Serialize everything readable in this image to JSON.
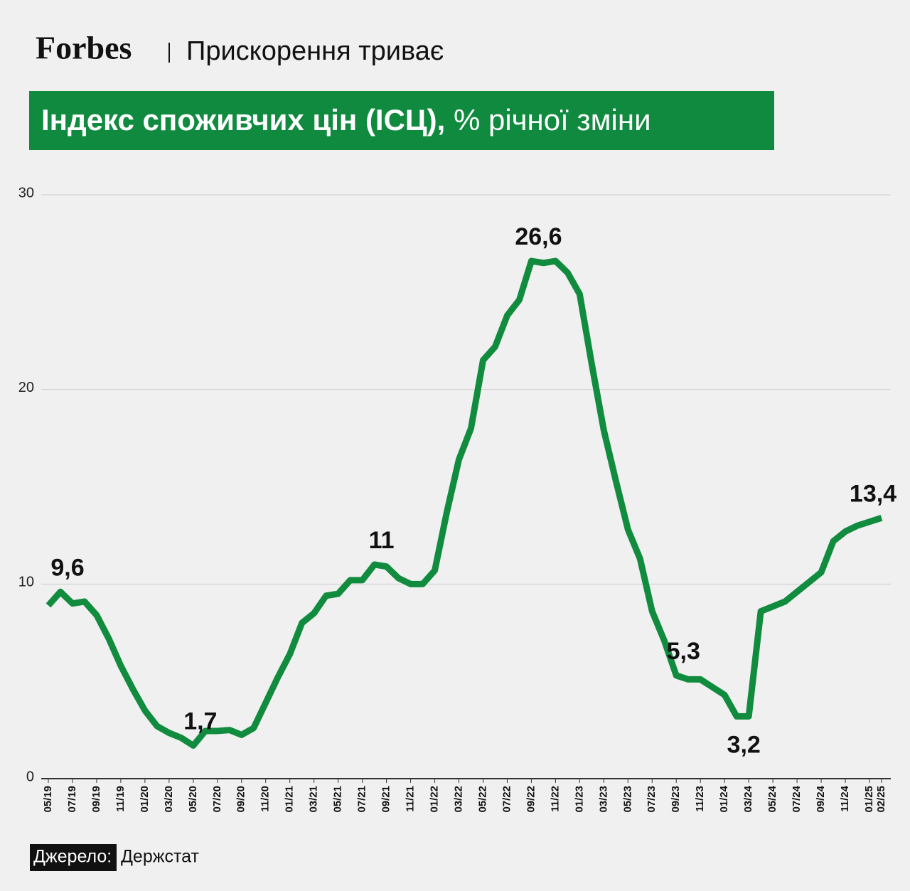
{
  "brand": "Forbes",
  "headline": "Прискорення триває",
  "source_label": "Джерело:",
  "source": "Держстат",
  "chart_data": {
    "type": "line",
    "title": "Індекс споживчих цін (ІСЦ),",
    "subtitle": "% річної зміни",
    "categories": [
      "05/19",
      null,
      "07/19",
      null,
      "09/19",
      null,
      "11/19",
      null,
      "01/20",
      null,
      "03/20",
      null,
      "05/20",
      null,
      "07/20",
      null,
      "09/20",
      null,
      "11/20",
      null,
      "01/21",
      null,
      "03/21",
      null,
      "05/21",
      null,
      "07/21",
      null,
      "09/21",
      null,
      "11/21",
      null,
      "01/22",
      null,
      "03/22",
      null,
      "05/22",
      null,
      "07/22",
      null,
      "09/22",
      null,
      "11/22",
      null,
      "01/23",
      null,
      "03/23",
      null,
      "05/23",
      null,
      "07/23",
      null,
      "09/23",
      null,
      "11/23",
      null,
      "01/24",
      null,
      "03/24",
      null,
      "05/24",
      null,
      "07/24",
      null,
      "09/24",
      null,
      "11/24",
      null,
      "01/25",
      "02/25"
    ],
    "series": [
      {
        "name": "ІСЦ",
        "color": "#118c3f",
        "values": [
          8.9,
          9.6,
          9.0,
          9.1,
          8.4,
          7.2,
          5.8,
          4.6,
          3.5,
          2.7,
          2.35,
          2.1,
          1.7,
          2.45,
          2.45,
          2.5,
          2.25,
          2.6,
          3.9,
          5.2,
          6.4,
          8.0,
          8.5,
          9.4,
          9.5,
          10.2,
          10.2,
          11.0,
          10.9,
          10.3,
          10.0,
          10.0,
          10.7,
          13.7,
          16.4,
          18.0,
          21.5,
          22.2,
          23.8,
          24.6,
          26.6,
          26.5,
          26.6,
          26.0,
          24.9,
          21.3,
          17.9,
          15.3,
          12.8,
          11.3,
          8.6,
          7.1,
          5.3,
          5.1,
          5.1,
          4.7,
          4.3,
          3.2,
          3.2,
          8.6,
          8.85,
          9.1,
          9.6,
          10.1,
          10.6,
          12.2,
          12.7,
          13.0,
          13.2,
          13.4
        ],
        "value_labels": [
          null,
          "9,6",
          null,
          null,
          null,
          null,
          null,
          null,
          null,
          null,
          null,
          null,
          "1,7",
          null,
          null,
          null,
          null,
          null,
          null,
          null,
          null,
          null,
          null,
          null,
          null,
          null,
          null,
          "11",
          null,
          null,
          null,
          null,
          null,
          null,
          null,
          null,
          null,
          null,
          null,
          null,
          "26,6",
          null,
          null,
          null,
          null,
          null,
          null,
          null,
          null,
          null,
          null,
          null,
          "5,3",
          null,
          null,
          null,
          null,
          "3,2",
          null,
          null,
          null,
          null,
          null,
          null,
          null,
          null,
          null,
          null,
          null,
          "13,4"
        ]
      }
    ],
    "ylim": [
      0,
      30
    ],
    "yticks": [
      0,
      10,
      20,
      30
    ],
    "grid": true
  }
}
